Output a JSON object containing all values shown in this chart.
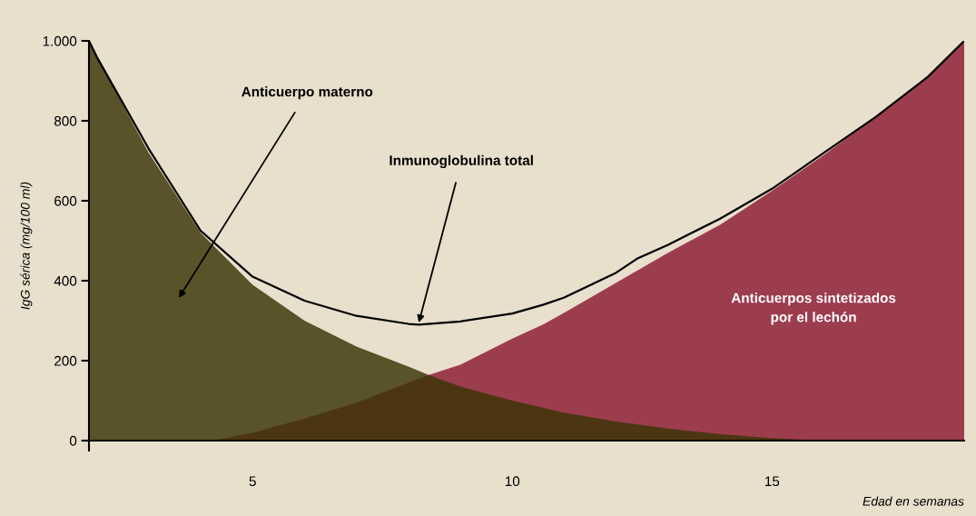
{
  "chart_data": {
    "type": "area",
    "xlabel": "Edad en semanas",
    "ylabel": "IgG sérica (mg/100 ml)",
    "xlim": [
      1.85,
      18.7
    ],
    "ylim": [
      -25,
      1000
    ],
    "xticks": [
      5,
      10,
      15
    ],
    "yticks": [
      0,
      200,
      400,
      600,
      800,
      {
        "value": 1000,
        "label": "1.000"
      }
    ],
    "grid": false,
    "legend": false,
    "series": [
      {
        "color": "#8b1a32",
        "x": [
          4.25,
          5,
          6,
          7,
          8,
          8.39,
          9,
          10,
          10.6,
          11,
          12,
          13,
          14,
          15,
          16,
          17,
          18,
          18.7
        ],
        "values": [
          0,
          20,
          55,
          95,
          145,
          164,
          190,
          255,
          291,
          320,
          395,
          470,
          540,
          625,
          715,
          810,
          910,
          1000
        ]
      },
      {
        "color": "#3b3505",
        "x": [
          1.85,
          2,
          3,
          4,
          5,
          6,
          7,
          8,
          8.39,
          9,
          10,
          11,
          12,
          13,
          14,
          15,
          16,
          18.7
        ],
        "values": [
          1000,
          960,
          720,
          520,
          390,
          300,
          235,
          185,
          164,
          135,
          100,
          70,
          48,
          30,
          16,
          6,
          0,
          0
        ]
      },
      {
        "type": "line",
        "color": "#000000",
        "x": [
          1.85,
          2,
          3,
          4,
          5,
          6,
          7,
          8,
          8.2,
          9,
          10,
          10.6,
          11,
          12,
          12.4,
          13,
          14,
          15,
          16,
          17,
          18,
          18.7
        ],
        "values": [
          1000,
          960,
          730,
          525,
          410,
          350,
          312,
          292,
          290,
          298,
          318,
          340,
          358,
          420,
          455,
          490,
          555,
          630,
          720,
          810,
          910,
          1000
        ]
      }
    ],
    "annotations": [
      "Anticuerpo materno",
      {
        "text": "Inmunoglobulina total",
        "x": 8.2,
        "y": 295
      },
      "Anticuerpos sintetizados\npor el lechón"
    ]
  }
}
